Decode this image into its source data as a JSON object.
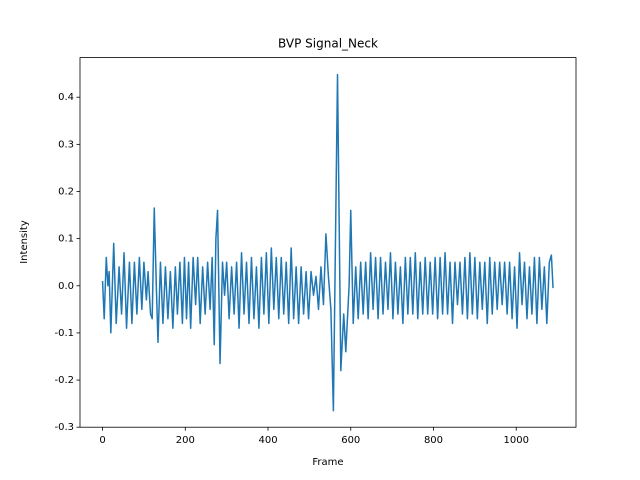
{
  "chart_data": {
    "type": "line",
    "title": "BVP Signal_Neck",
    "x_label": "Frame",
    "y_label": "Intensity",
    "color": "#1f77b4",
    "x": [
      0,
      4,
      9,
      13,
      16,
      20,
      27,
      33,
      40,
      46,
      52,
      58,
      65,
      71,
      77,
      83,
      89,
      95,
      100,
      106,
      110,
      116,
      120,
      125,
      130,
      134,
      140,
      146,
      152,
      158,
      164,
      170,
      176,
      181,
      187,
      193,
      198,
      203,
      208,
      213,
      219,
      225,
      230,
      236,
      242,
      248,
      254,
      260,
      265,
      270,
      274,
      278,
      284,
      290,
      295,
      300,
      306,
      312,
      318,
      324,
      330,
      336,
      342,
      348,
      354,
      360,
      366,
      372,
      378,
      384,
      390,
      396,
      402,
      408,
      414,
      420,
      426,
      432,
      438,
      444,
      450,
      456,
      462,
      468,
      474,
      480,
      486,
      492,
      498,
      504,
      510,
      516,
      522,
      528,
      534,
      540,
      546,
      552,
      558,
      568,
      576,
      583,
      588,
      596,
      600,
      606,
      612,
      618,
      624,
      630,
      636,
      642,
      648,
      654,
      660,
      666,
      672,
      678,
      684,
      690,
      696,
      702,
      708,
      714,
      720,
      726,
      732,
      738,
      744,
      750,
      756,
      762,
      768,
      774,
      780,
      786,
      792,
      798,
      804,
      810,
      816,
      822,
      828,
      834,
      840,
      846,
      852,
      858,
      864,
      870,
      876,
      882,
      888,
      894,
      900,
      906,
      912,
      918,
      924,
      930,
      936,
      942,
      948,
      954,
      960,
      966,
      972,
      978,
      984,
      990,
      996,
      1002,
      1008,
      1014,
      1020,
      1026,
      1032,
      1038,
      1044,
      1050,
      1056,
      1062,
      1068,
      1074,
      1080,
      1085,
      1089
    ],
    "values": [
      0.01,
      -0.07,
      0.06,
      0.0,
      0.03,
      -0.1,
      0.09,
      -0.08,
      0.04,
      -0.06,
      0.07,
      -0.09,
      0.05,
      -0.08,
      0.05,
      -0.06,
      0.06,
      -0.05,
      0.05,
      -0.03,
      0.03,
      -0.06,
      -0.07,
      0.165,
      0.0,
      -0.12,
      0.05,
      -0.08,
      0.04,
      -0.07,
      0.03,
      -0.09,
      0.04,
      -0.06,
      0.05,
      -0.08,
      0.06,
      -0.07,
      0.05,
      -0.09,
      0.06,
      -0.04,
      0.06,
      -0.08,
      0.04,
      -0.06,
      0.05,
      -0.05,
      0.06,
      -0.125,
      0.1,
      0.16,
      -0.165,
      0.05,
      -0.02,
      0.05,
      -0.07,
      0.04,
      -0.06,
      0.05,
      -0.09,
      0.07,
      -0.06,
      0.05,
      -0.08,
      0.06,
      -0.07,
      0.04,
      -0.09,
      0.06,
      -0.06,
      0.07,
      -0.08,
      0.08,
      -0.05,
      0.06,
      -0.07,
      0.06,
      -0.06,
      0.05,
      -0.08,
      0.08,
      -0.07,
      0.04,
      -0.08,
      0.04,
      -0.06,
      0.03,
      -0.07,
      0.03,
      -0.02,
      0.02,
      -0.05,
      0.04,
      -0.04,
      0.11,
      0.02,
      -0.05,
      -0.265,
      0.448,
      -0.18,
      -0.06,
      -0.14,
      0.0,
      0.16,
      -0.08,
      0.04,
      -0.07,
      0.05,
      -0.06,
      0.05,
      -0.07,
      0.07,
      -0.05,
      0.06,
      -0.07,
      0.06,
      -0.06,
      0.05,
      -0.05,
      0.07,
      -0.07,
      0.05,
      -0.06,
      0.04,
      -0.08,
      0.06,
      -0.06,
      0.06,
      -0.06,
      0.07,
      -0.07,
      0.05,
      -0.06,
      0.06,
      -0.06,
      0.05,
      -0.06,
      0.06,
      -0.07,
      0.06,
      -0.06,
      0.07,
      -0.06,
      0.05,
      -0.08,
      0.05,
      -0.04,
      0.05,
      -0.06,
      0.06,
      -0.07,
      0.07,
      -0.06,
      0.06,
      -0.07,
      0.05,
      -0.05,
      0.05,
      -0.08,
      0.06,
      -0.06,
      0.05,
      -0.05,
      0.05,
      -0.04,
      0.05,
      -0.06,
      0.05,
      -0.07,
      0.04,
      -0.09,
      0.07,
      -0.04,
      0.05,
      -0.07,
      0.04,
      -0.06,
      0.06,
      -0.08,
      0.06,
      -0.05,
      0.04,
      -0.08,
      0.05,
      0.065,
      -0.005
    ],
    "xlim": [
      -54.5,
      1144.5
    ],
    "ylim": [
      -0.3,
      0.484
    ],
    "xticks": [
      0,
      200,
      400,
      600,
      800,
      1000
    ],
    "yticks": [
      -0.3,
      -0.2,
      -0.1,
      {
        "value": 0,
        "label": "0.0"
      },
      0.1,
      0.2,
      0.3,
      0.4
    ]
  }
}
